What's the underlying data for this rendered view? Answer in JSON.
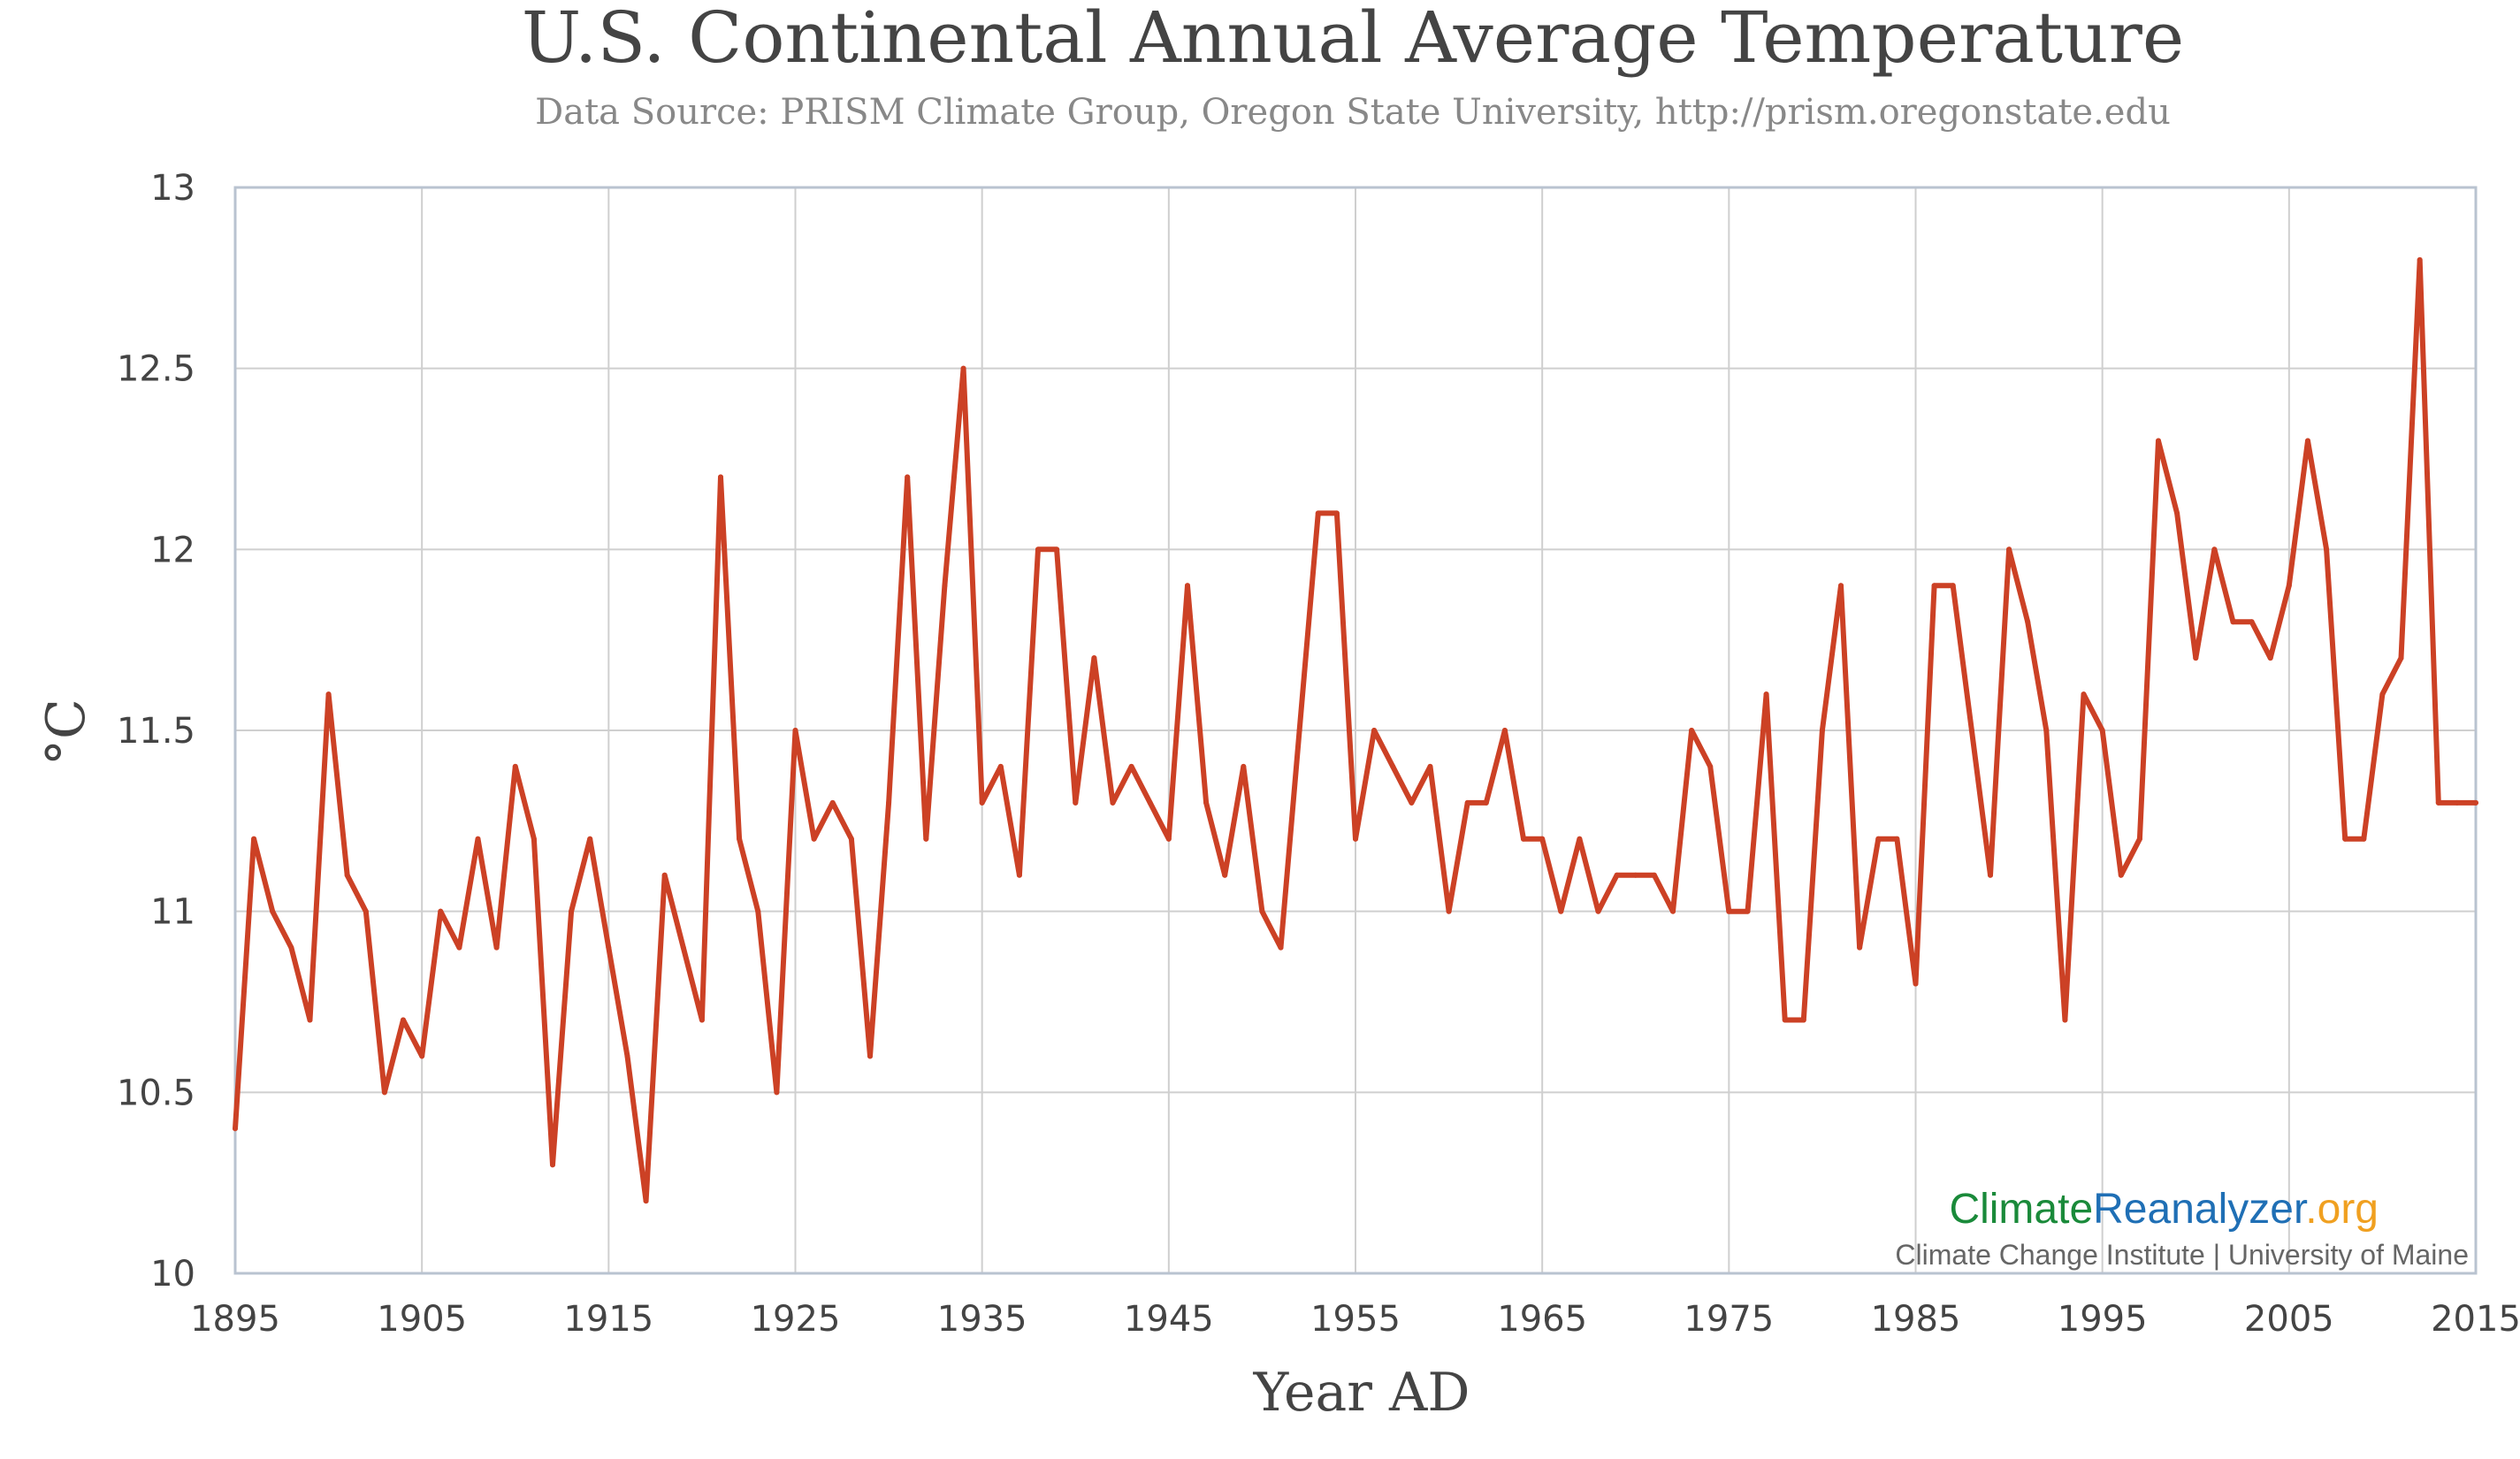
{
  "chart_data": {
    "type": "line",
    "title": "U.S. Continental Annual Average Temperature",
    "subtitle": "Data Source: PRISM Climate Group, Oregon State University, http://prism.oregonstate.edu",
    "xlabel": "Year AD",
    "ylabel": "°C",
    "xlim": [
      1895,
      2015
    ],
    "ylim": [
      10,
      13
    ],
    "x_ticks": [
      1895,
      1905,
      1915,
      1925,
      1935,
      1945,
      1955,
      1965,
      1975,
      1985,
      1995,
      2005,
      2015
    ],
    "y_ticks": [
      10,
      10.5,
      11,
      11.5,
      12,
      12.5,
      13
    ],
    "grid": true,
    "series_color": "#cc4125",
    "series": [
      {
        "x": [
          1895,
          1896,
          1897,
          1898,
          1899,
          1900,
          1901,
          1902,
          1903,
          1904,
          1905,
          1906,
          1907,
          1908,
          1909,
          1910,
          1911,
          1912,
          1913,
          1914,
          1915,
          1916,
          1917,
          1918,
          1919,
          1920,
          1921,
          1922,
          1923,
          1924,
          1925,
          1926,
          1927,
          1928,
          1929,
          1930,
          1931,
          1932,
          1933,
          1934,
          1935,
          1936,
          1937,
          1938,
          1939,
          1940,
          1941,
          1942,
          1943,
          1944,
          1945,
          1946,
          1947,
          1948,
          1949,
          1950,
          1951,
          1952,
          1953,
          1954,
          1955,
          1956,
          1957,
          1958,
          1959,
          1960,
          1961,
          1962,
          1963,
          1964,
          1965,
          1966,
          1967,
          1968,
          1969,
          1970,
          1971,
          1972,
          1973,
          1974,
          1975,
          1976,
          1977,
          1978,
          1979,
          1980,
          1981,
          1982,
          1983,
          1984,
          1985,
          1986,
          1987,
          1988,
          1989,
          1990,
          1991,
          1992,
          1993,
          1994,
          1995,
          1996,
          1997,
          1998,
          1999,
          2000,
          2001,
          2002,
          2003,
          2004,
          2005,
          2006,
          2007,
          2008,
          2009,
          2010,
          2011,
          2012,
          2013,
          2014,
          2015
        ],
        "y": [
          10.4,
          11.2,
          11.0,
          10.9,
          10.7,
          11.6,
          11.1,
          11.0,
          10.5,
          10.7,
          10.6,
          11.0,
          10.9,
          11.2,
          10.9,
          11.4,
          11.2,
          10.3,
          11.0,
          11.2,
          10.9,
          10.6,
          10.2,
          11.1,
          10.9,
          10.7,
          12.2,
          11.2,
          11.0,
          10.5,
          11.5,
          11.2,
          11.3,
          11.2,
          10.6,
          11.3,
          12.2,
          11.2,
          11.9,
          12.5,
          11.3,
          11.4,
          11.1,
          12.0,
          12.0,
          11.3,
          11.7,
          11.3,
          11.4,
          11.3,
          11.2,
          11.9,
          11.3,
          11.1,
          11.4,
          11.0,
          10.9,
          11.5,
          12.1,
          12.1,
          11.2,
          11.5,
          11.4,
          11.3,
          11.4,
          11.0,
          11.3,
          11.3,
          11.5,
          11.2,
          11.2,
          11.0,
          11.2,
          11.0,
          11.1,
          11.1,
          11.1,
          11.0,
          11.5,
          11.4,
          11.0,
          11.0,
          11.6,
          10.7,
          10.7,
          11.5,
          11.9,
          10.9,
          11.2,
          11.2,
          10.8,
          11.9,
          11.9,
          11.5,
          11.1,
          12.0,
          11.8,
          11.5,
          10.7,
          11.6,
          11.5,
          11.1,
          11.2,
          12.3,
          12.1,
          11.7,
          12.0,
          11.8,
          11.8,
          11.7,
          11.9,
          12.3,
          12.0,
          11.2,
          11.2,
          11.6,
          11.7,
          12.8,
          11.3,
          11.3,
          11.3
        ]
      }
    ]
  },
  "watermark": {
    "climate": "Climate",
    "reanalyzer": "Reanalyzer",
    "org": ".org",
    "subline": "Climate Change Institute | University of Maine",
    "colors": {
      "climate": "#1a8a3a",
      "reanalyzer": "#1f6fb5",
      "org": "#f0a020"
    }
  }
}
